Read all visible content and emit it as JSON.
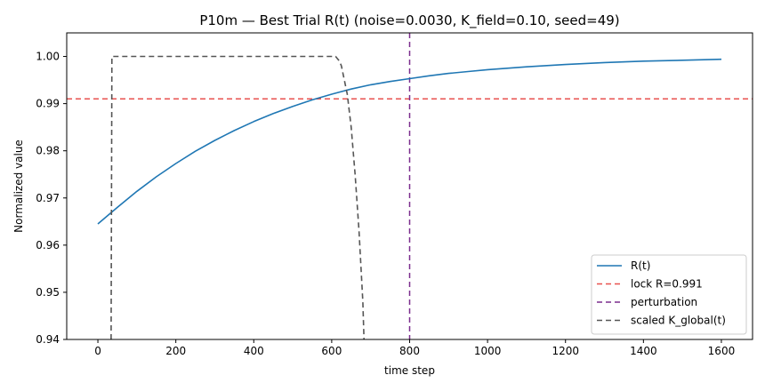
{
  "chart_data": {
    "type": "line",
    "title": "P10m — Best Trial R(t)  (noise=0.0030, K_field=0.10, seed=49)",
    "xlabel": "time step",
    "ylabel": "Normalized value",
    "xlim": [
      -80,
      1680
    ],
    "ylim": [
      0.94,
      1.005
    ],
    "xticks": [
      0,
      200,
      400,
      600,
      800,
      1000,
      1200,
      1400,
      1600
    ],
    "yticks": [
      0.94,
      0.95,
      0.96,
      0.97,
      0.98,
      0.99,
      1.0
    ],
    "ytick_labels": [
      "0.94",
      "0.95",
      "0.96",
      "0.97",
      "0.98",
      "0.99",
      "1.00"
    ],
    "grid": false,
    "legend_position": "lower-right",
    "series": [
      {
        "name": "R(t)",
        "style": "solid",
        "color": "#1f77b4",
        "x": [
          0,
          50,
          100,
          150,
          200,
          250,
          300,
          350,
          400,
          450,
          500,
          550,
          600,
          650,
          700,
          750,
          800,
          850,
          900,
          950,
          1000,
          1100,
          1200,
          1300,
          1400,
          1500,
          1600
        ],
        "y": [
          0.9645,
          0.968,
          0.9714,
          0.9745,
          0.9773,
          0.9799,
          0.9822,
          0.9843,
          0.9862,
          0.9879,
          0.9894,
          0.9908,
          0.992,
          0.9931,
          0.994,
          0.9947,
          0.9953,
          0.9959,
          0.9964,
          0.9968,
          0.9972,
          0.9978,
          0.9983,
          0.9987,
          0.999,
          0.9992,
          0.9994
        ]
      },
      {
        "name": "scaled K_global(t)",
        "style": "dashed",
        "color": "#555555",
        "x": [
          34,
          36,
          40,
          100,
          200,
          300,
          400,
          500,
          600,
          610,
          615,
          620,
          625,
          630,
          640,
          650,
          660,
          670,
          680,
          683
        ],
        "y": [
          0.94,
          1.0,
          1.0,
          1.0,
          1.0,
          1.0,
          1.0,
          1.0,
          1.0,
          1.0,
          0.9995,
          0.999,
          0.998,
          0.996,
          0.992,
          0.985,
          0.975,
          0.963,
          0.948,
          0.94
        ]
      }
    ],
    "hlines": [
      {
        "name": "lock R=0.991",
        "y": 0.991,
        "color": "#e8514f",
        "style": "dashed"
      }
    ],
    "vlines": [
      {
        "name": "perturbation",
        "x": 800,
        "color": "#7b2d8e",
        "style": "dashed"
      }
    ],
    "legend": [
      "R(t)",
      "lock R=0.991",
      "perturbation",
      "scaled K_global(t)"
    ]
  }
}
